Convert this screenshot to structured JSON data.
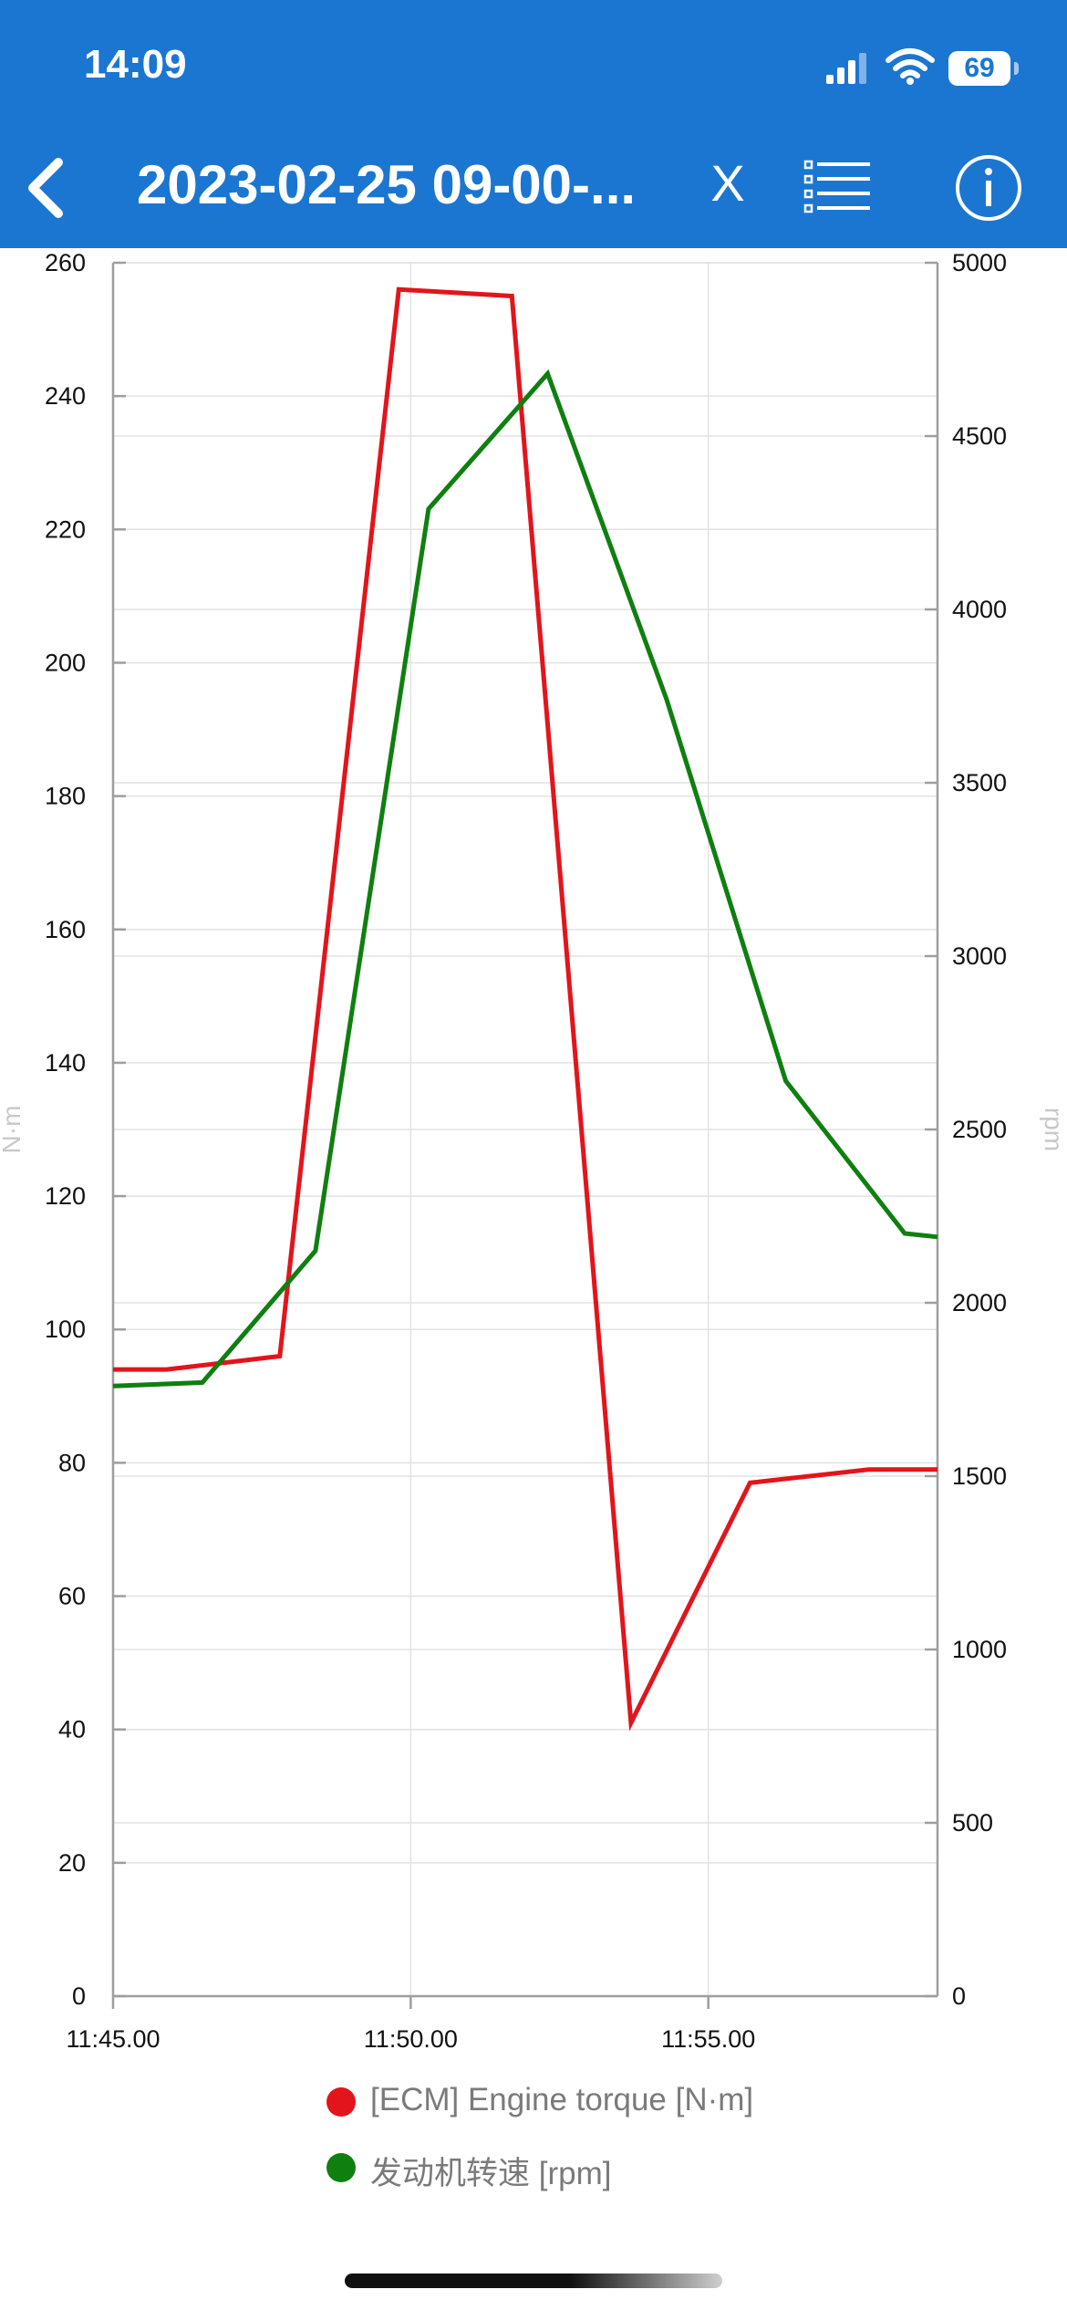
{
  "status_bar": {
    "time": "14:09",
    "battery": "69"
  },
  "header": {
    "title": "2023-02-25 09-00-...",
    "close_label": "X"
  },
  "icons": {
    "back": "chevron-left-icon",
    "list": "list-icon",
    "info": "info-icon"
  },
  "colors": {
    "header_bg": "#1b76d2",
    "series_torque": "#e3141b",
    "series_rpm": "#0f7f10"
  },
  "chart_data": {
    "type": "line",
    "left_axis": {
      "label": "N·m",
      "min": 0,
      "max": 260,
      "ticks": [
        0,
        20,
        40,
        60,
        80,
        100,
        120,
        140,
        160,
        180,
        200,
        220,
        240,
        260
      ]
    },
    "right_axis": {
      "label": "rpm",
      "min": 0,
      "max": 5000,
      "ticks": [
        0,
        500,
        1000,
        1500,
        2000,
        2500,
        3000,
        3500,
        4000,
        4500,
        5000
      ]
    },
    "x_axis": {
      "min": 0,
      "max": 13.85,
      "tick_values": [
        0,
        5,
        10
      ],
      "tick_labels": [
        "11:45.00",
        "11:50.00",
        "11:55.00"
      ]
    },
    "grid": true,
    "legend_position": "bottom",
    "series": [
      {
        "name": "[ECM] Engine torque [N·m]",
        "axis": "left",
        "x": [
          0,
          0.9,
          2.8,
          4.8,
          6.7,
          8.7,
          10.7,
          12.7,
          13.85
        ],
        "y": [
          94,
          94,
          96,
          256,
          255,
          41,
          77,
          79,
          79
        ]
      },
      {
        "name": "发动机转速 [rpm]",
        "axis": "right",
        "x": [
          0,
          1.5,
          3.4,
          5.3,
          7.3,
          9.3,
          11.3,
          13.3,
          13.85
        ],
        "y": [
          1760,
          1770,
          2150,
          4290,
          4680,
          3740,
          2640,
          2200,
          2190
        ]
      }
    ]
  }
}
